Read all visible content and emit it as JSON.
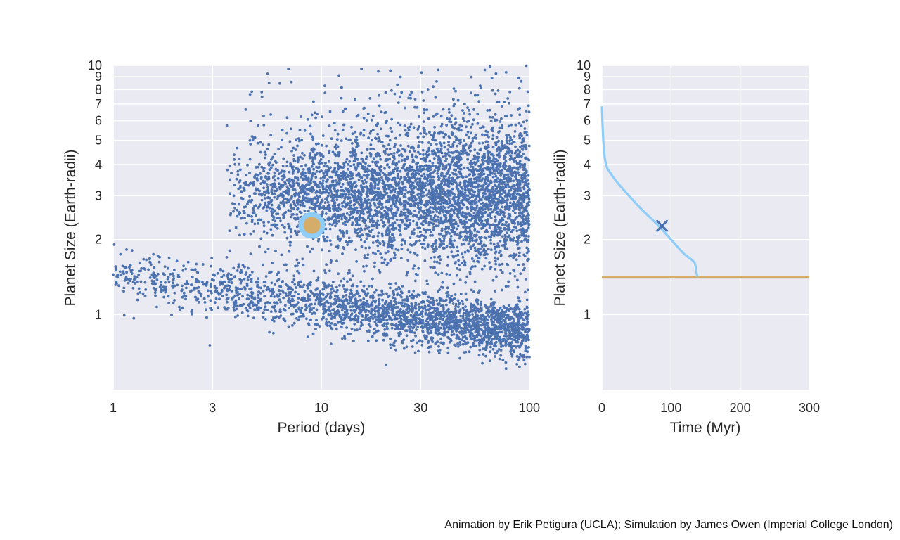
{
  "credit": "Animation by Erik Petigura (UCLA); Simulation by James Owen (Imperial College London)",
  "colors": {
    "panel_background": "#eaeaf2",
    "grid": "#ffffff",
    "points": "#4c72b0",
    "highlight_halo": "#8ecdf8",
    "highlight_core": "#d4ad6a",
    "track": "#8ecdf8",
    "core_line": "#d4ad6a",
    "marker": "#4c72b0"
  },
  "chart_data": [
    {
      "type": "scatter",
      "title": "",
      "xlabel": "Period (days)",
      "ylabel": "Planet Size (Earth-radii)",
      "xscale": "log",
      "yscale": "log",
      "xlim": [
        1,
        100
      ],
      "ylim": [
        0.5,
        10
      ],
      "xticks": [
        1,
        3,
        10,
        30,
        100
      ],
      "xtick_labels": [
        "1",
        "3",
        "10",
        "30",
        "100"
      ],
      "yticks": [
        1,
        2,
        3,
        4,
        5,
        6,
        7,
        8,
        9,
        10
      ],
      "ytick_labels": [
        "1",
        "2",
        "3",
        "4",
        "5",
        "6",
        "7",
        "8",
        "9",
        "10"
      ],
      "grid": true,
      "point_count_approx": 7000,
      "populations": [
        {
          "description_period_range": [
            1,
            100
          ],
          "radius_at_period_1": 1.45,
          "radius_at_period_100": 0.85
        },
        {
          "description_period_range": [
            3.5,
            100
          ],
          "radius_center": 2.9
        }
      ],
      "highlighted_planet": {
        "period": 9.0,
        "radius": 2.28
      }
    },
    {
      "type": "line",
      "title": "",
      "xlabel": "Time (Myr)",
      "ylabel": "Planet Size (Earth-radii)",
      "yscale": "log",
      "xlim": [
        0,
        300
      ],
      "ylim": [
        0.5,
        10
      ],
      "xticks": [
        0,
        100,
        200,
        300
      ],
      "xtick_labels": [
        "0",
        "100",
        "200",
        "300"
      ],
      "yticks": [
        1,
        2,
        3,
        4,
        5,
        6,
        7,
        8,
        9,
        10
      ],
      "ytick_labels": [
        "1",
        "2",
        "3",
        "4",
        "5",
        "6",
        "7",
        "8",
        "9",
        "10"
      ],
      "grid": true,
      "series": [
        {
          "x": [
            0,
            1,
            2,
            4,
            6,
            8,
            10,
            15,
            20,
            30,
            40,
            50,
            60,
            70,
            80,
            90,
            100,
            110,
            120,
            130,
            134,
            136,
            137,
            138
          ],
          "y": [
            6.85,
            5.7,
            5.0,
            4.3,
            4.0,
            3.85,
            3.78,
            3.6,
            3.45,
            3.2,
            2.98,
            2.78,
            2.6,
            2.45,
            2.3,
            2.15,
            2.0,
            1.86,
            1.74,
            1.66,
            1.62,
            1.55,
            1.47,
            1.42
          ]
        },
        {
          "x": [
            0,
            300
          ],
          "y": [
            1.41,
            1.41
          ]
        }
      ],
      "marker": {
        "x": 87,
        "y": 2.27,
        "symbol": "x"
      }
    }
  ]
}
